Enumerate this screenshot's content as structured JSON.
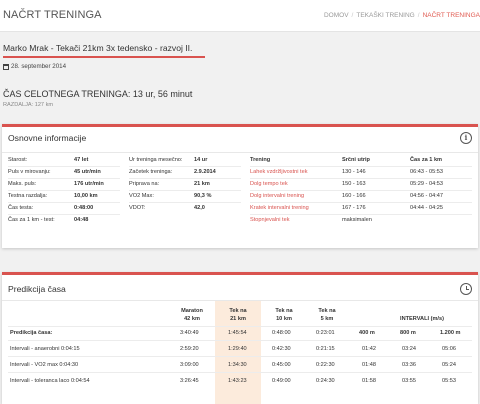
{
  "header": {
    "title": "NAČRT TRENINGA",
    "breadcrumb": [
      "DOMOV",
      "TEKAŠKI TRENING",
      "NAČRT TRENINGA"
    ]
  },
  "plan": {
    "title": "Marko Mrak - Tekači 21km 3x tedensko - razvoj II.",
    "date": "28. september 2014",
    "total_time": "ČAS CELOTNEGA TRENINGA: 13 ur, 56 minut",
    "distance": "RAZDALJA: 127 km"
  },
  "basic_info": {
    "title": "Osnovne informacije",
    "col1": [
      {
        "label": "Starost:",
        "value": "47 let"
      },
      {
        "label": "Puls v mirovanju:",
        "value": "45 utr/min"
      },
      {
        "label": "Maks. puls:",
        "value": "176 utr/min"
      },
      {
        "label": "Testna razdalja:",
        "value": "10,00 km"
      },
      {
        "label": "Čas testa:",
        "value": "0:48:00"
      },
      {
        "label": "Čas za 1 km - test:",
        "value": "04:48"
      }
    ],
    "col2": [
      {
        "label": "Ur treninga mesečno:",
        "value": "14 ur"
      },
      {
        "label": "Začetek treninga:",
        "value": "2.9.2014"
      },
      {
        "label": "Priprava na:",
        "value": "21 km"
      },
      {
        "label": "VO2 Max:",
        "value": "90,3 %"
      },
      {
        "label": "VDOT:",
        "value": "42,0"
      }
    ],
    "zones": {
      "headers": [
        "Trening",
        "Srčni utrip",
        "Čas za 1 km"
      ],
      "rows": [
        {
          "name": "Lahek vzdržljivostni tek",
          "hr": "130 - 146",
          "pace": "06:43 - 05:53"
        },
        {
          "name": "Dolg tempo tek",
          "hr": "150 - 163",
          "pace": "05:29 - 04:53"
        },
        {
          "name": "Dolg intervalni trening",
          "hr": "160 - 166",
          "pace": "04:56 - 04:47"
        },
        {
          "name": "Kratek intervalni trening",
          "hr": "167 - 176",
          "pace": "04:44 - 04:25"
        },
        {
          "name": "Stopnjevalni tek",
          "hr": "maksimalen",
          "pace": ""
        }
      ]
    }
  },
  "prediction": {
    "title": "Predikcija časa",
    "headers": [
      {
        "l1": "Maraton",
        "l2": "42 km"
      },
      {
        "l1": "Tek na",
        "l2": "21 km"
      },
      {
        "l1": "Tek na",
        "l2": "10 km"
      },
      {
        "l1": "Tek na",
        "l2": "5 km"
      }
    ],
    "intervals_header": "INTERVALI (m/s)",
    "rows": [
      {
        "label": "Predikcija časa:",
        "values": [
          "3:40:49",
          "1:45:54",
          "0:48:00",
          "0:23:01"
        ],
        "intervals": [
          "400 m",
          "800 m",
          "1.200 m"
        ]
      },
      {
        "label": "Intervali - anaerobni 0:04:15",
        "values": [
          "2:59:20",
          "1:29:40",
          "0:42:30",
          "0:21:15"
        ],
        "intervals": [
          "01:42",
          "03:24",
          "05:06"
        ]
      },
      {
        "label": "Intervali - VO2 max 0:04:30",
        "values": [
          "3:09:00",
          "1:34:30",
          "0:45:00",
          "0:22:30"
        ],
        "intervals": [
          "01:48",
          "03:36",
          "05:24"
        ]
      },
      {
        "label": "Intervali - toleranca laco 0:04:54",
        "values": [
          "3:26:45",
          "1:43:23",
          "0:49:00",
          "0:24:30"
        ],
        "intervals": [
          "01:58",
          "03:55",
          "05:53"
        ]
      }
    ]
  }
}
